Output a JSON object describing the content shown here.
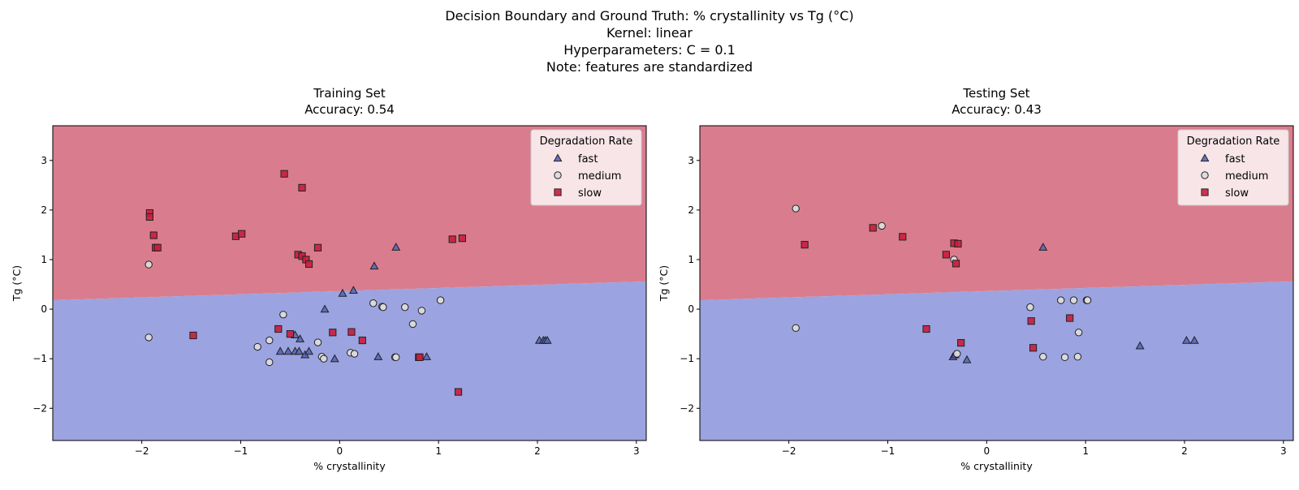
{
  "suptitle": [
    "Decision Boundary and Ground Truth: % crystallinity vs Tg (°C)",
    "Kernel: linear",
    "Hyperparameters: C = 0.1",
    "Note: features are standardized"
  ],
  "colors": {
    "fast": "#5a66b8",
    "medium": "#dcdcdc",
    "slow": "#c81e3c",
    "region_fast": "#9ba3e0",
    "region_slow": "#d97d8e",
    "marker_edge": "#222222"
  },
  "chart_data": [
    {
      "type": "scatter",
      "title": "Training Set",
      "subtitle": "Accuracy: 0.54",
      "xlabel": "% crystallinity",
      "ylabel": "Tg (°C)",
      "xlim": [
        -2.9,
        3.1
      ],
      "ylim": [
        -2.65,
        3.7
      ],
      "xticks": [
        -2,
        -1,
        0,
        1,
        2,
        3
      ],
      "yticks": [
        -2,
        -1,
        0,
        1,
        2,
        3
      ],
      "decision_boundary": {
        "x": [
          -2.9,
          3.1
        ],
        "y": [
          0.18,
          0.56
        ],
        "above": "slow",
        "below": "fast"
      },
      "legend": {
        "title": "Degradation Rate",
        "position": "top-right",
        "entries": [
          "fast",
          "medium",
          "slow"
        ]
      },
      "series": [
        {
          "name": "fast",
          "marker": "triangle",
          "points": [
            [
              0.57,
              1.25
            ],
            [
              0.35,
              0.87
            ],
            [
              0.14,
              0.38
            ],
            [
              0.03,
              0.32
            ],
            [
              -0.15,
              0.0
            ],
            [
              -0.45,
              -0.52
            ],
            [
              -0.4,
              -0.6
            ],
            [
              -0.6,
              -0.85
            ],
            [
              -0.52,
              -0.85
            ],
            [
              -0.45,
              -0.85
            ],
            [
              -0.41,
              -0.85
            ],
            [
              -0.35,
              -0.92
            ],
            [
              -0.31,
              -0.85
            ],
            [
              -0.05,
              -1.0
            ],
            [
              0.39,
              -0.96
            ],
            [
              0.88,
              -0.96
            ],
            [
              2.02,
              -0.63
            ],
            [
              2.06,
              -0.63
            ],
            [
              2.08,
              -0.63
            ],
            [
              2.1,
              -0.63
            ]
          ]
        },
        {
          "name": "medium",
          "marker": "circle",
          "points": [
            [
              -1.93,
              0.9
            ],
            [
              -1.93,
              -0.57
            ],
            [
              -0.57,
              -0.11
            ],
            [
              -0.83,
              -0.76
            ],
            [
              -0.71,
              -0.63
            ],
            [
              -0.71,
              -1.07
            ],
            [
              -0.22,
              -0.67
            ],
            [
              -0.18,
              -0.96
            ],
            [
              -0.16,
              -1.0
            ],
            [
              0.11,
              -0.88
            ],
            [
              0.15,
              -0.9
            ],
            [
              0.34,
              0.12
            ],
            [
              0.43,
              0.05
            ],
            [
              0.44,
              0.04
            ],
            [
              0.66,
              0.04
            ],
            [
              0.74,
              -0.3
            ],
            [
              0.83,
              -0.03
            ],
            [
              1.02,
              0.18
            ],
            [
              0.56,
              -0.97
            ],
            [
              0.57,
              -0.97
            ]
          ]
        },
        {
          "name": "slow",
          "marker": "square",
          "points": [
            [
              -1.92,
              1.94
            ],
            [
              -1.92,
              1.86
            ],
            [
              -1.88,
              1.49
            ],
            [
              -1.86,
              1.24
            ],
            [
              -1.84,
              1.24
            ],
            [
              -1.05,
              1.47
            ],
            [
              -0.99,
              1.52
            ],
            [
              -0.56,
              2.73
            ],
            [
              -0.38,
              2.45
            ],
            [
              -0.42,
              1.1
            ],
            [
              -0.38,
              1.07
            ],
            [
              -0.34,
              1.0
            ],
            [
              -0.31,
              0.91
            ],
            [
              -0.22,
              1.24
            ],
            [
              1.14,
              1.41
            ],
            [
              1.24,
              1.43
            ],
            [
              -1.48,
              -0.53
            ],
            [
              -0.62,
              -0.4
            ],
            [
              -0.5,
              -0.5
            ],
            [
              -0.07,
              -0.47
            ],
            [
              0.12,
              -0.46
            ],
            [
              0.23,
              -0.63
            ],
            [
              0.8,
              -0.97
            ],
            [
              0.81,
              -0.97
            ],
            [
              1.2,
              -1.67
            ]
          ]
        }
      ]
    },
    {
      "type": "scatter",
      "title": "Testing Set",
      "subtitle": "Accuracy: 0.43",
      "xlabel": "% crystallinity",
      "ylabel": "Tg (°C)",
      "xlim": [
        -2.9,
        3.1
      ],
      "ylim": [
        -2.65,
        3.7
      ],
      "xticks": [
        -2,
        -1,
        0,
        1,
        2,
        3
      ],
      "yticks": [
        -2,
        -1,
        0,
        1,
        2,
        3
      ],
      "decision_boundary": {
        "x": [
          -2.9,
          3.1
        ],
        "y": [
          0.18,
          0.56
        ],
        "above": "slow",
        "below": "fast"
      },
      "legend": {
        "title": "Degradation Rate",
        "position": "top-right",
        "entries": [
          "fast",
          "medium",
          "slow"
        ]
      },
      "series": [
        {
          "name": "fast",
          "marker": "triangle",
          "points": [
            [
              0.57,
              1.25
            ],
            [
              -0.34,
              -0.96
            ],
            [
              -0.32,
              -0.92
            ],
            [
              -0.2,
              -1.02
            ],
            [
              1.55,
              -0.74
            ],
            [
              2.02,
              -0.63
            ],
            [
              2.1,
              -0.63
            ]
          ]
        },
        {
          "name": "medium",
          "marker": "circle",
          "points": [
            [
              -1.93,
              2.03
            ],
            [
              -1.93,
              -0.38
            ],
            [
              -1.06,
              1.68
            ],
            [
              -0.33,
              1.0
            ],
            [
              0.44,
              0.04
            ],
            [
              0.75,
              0.18
            ],
            [
              0.88,
              0.18
            ],
            [
              1.01,
              0.18
            ],
            [
              1.02,
              0.18
            ],
            [
              0.93,
              -0.47
            ],
            [
              0.57,
              -0.96
            ],
            [
              0.79,
              -0.97
            ],
            [
              0.92,
              -0.96
            ],
            [
              -0.3,
              -0.9
            ]
          ]
        },
        {
          "name": "slow",
          "marker": "square",
          "points": [
            [
              -1.84,
              1.3
            ],
            [
              -1.15,
              1.64
            ],
            [
              -0.85,
              1.46
            ],
            [
              -0.41,
              1.1
            ],
            [
              -0.33,
              1.33
            ],
            [
              -0.29,
              1.32
            ],
            [
              -0.31,
              0.92
            ],
            [
              -0.61,
              -0.4
            ],
            [
              -0.26,
              -0.68
            ],
            [
              0.45,
              -0.24
            ],
            [
              0.47,
              -0.78
            ],
            [
              0.84,
              -0.18
            ]
          ]
        }
      ]
    }
  ]
}
